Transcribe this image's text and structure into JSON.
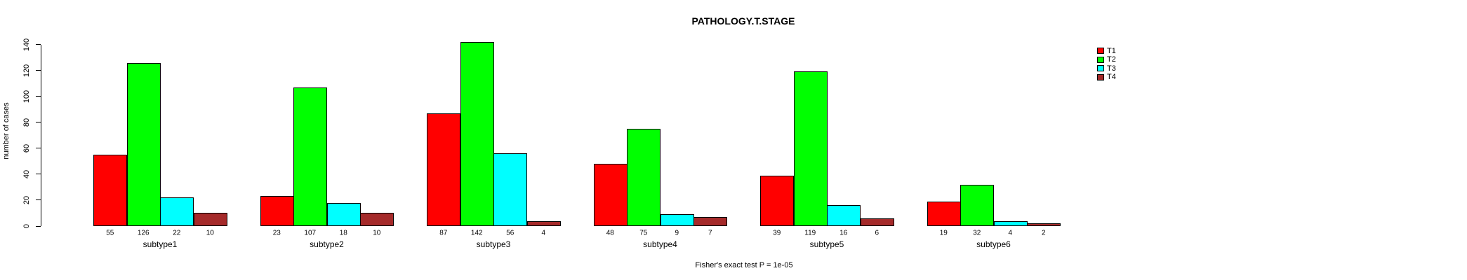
{
  "title": "PATHOLOGY.T.STAGE",
  "footnote": "Fisher's exact test P = 1e-05",
  "ylabel": "number of cases",
  "chart_data": {
    "type": "bar",
    "title": "PATHOLOGY.T.STAGE",
    "xlabel": "",
    "ylabel": "number of cases",
    "annotation": "Fisher's exact test P = 1e-05",
    "categories": [
      "subtype1",
      "subtype2",
      "subtype3",
      "subtype4",
      "subtype5",
      "subtype6"
    ],
    "series": [
      {
        "name": "T1",
        "color": "#FF0000",
        "values": [
          55,
          23,
          87,
          48,
          39,
          19
        ]
      },
      {
        "name": "T2",
        "color": "#00FF00",
        "values": [
          126,
          107,
          142,
          75,
          119,
          32
        ]
      },
      {
        "name": "T3",
        "color": "#00FFFF",
        "values": [
          22,
          18,
          56,
          9,
          16,
          4
        ]
      },
      {
        "name": "T4",
        "color": "#A52A2A",
        "values": [
          10,
          10,
          4,
          7,
          6,
          2
        ]
      }
    ],
    "bar_value_labels_shown": true,
    "yticks": [
      0,
      20,
      40,
      60,
      80,
      100,
      120,
      140
    ],
    "ylim": [
      0,
      143
    ],
    "grid": false,
    "legend_position": "right-inside",
    "axis_color": "#000000",
    "background_color": "#FFFFFF"
  }
}
